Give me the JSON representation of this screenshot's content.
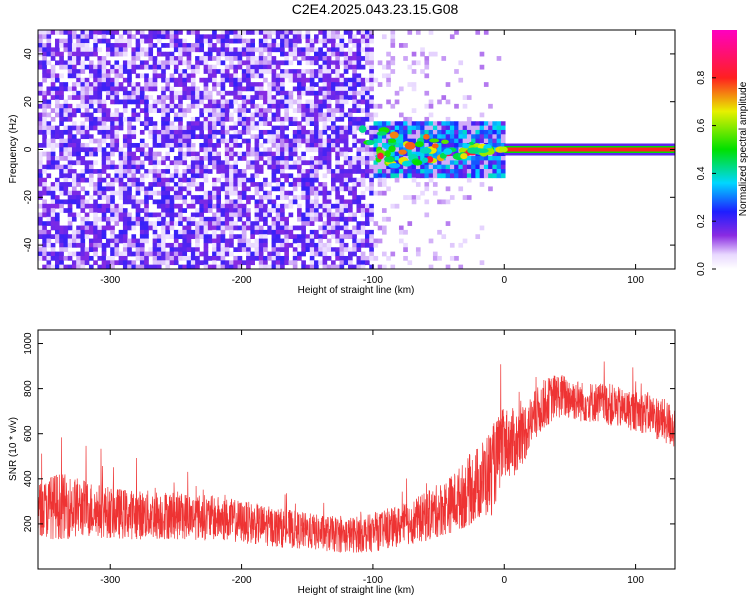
{
  "title": "C2E4.2025.043.23.15.G08",
  "chart_data": [
    {
      "type": "heatmap",
      "xlabel": "Height of straight line (km)",
      "ylabel": "Frequency (Hz)",
      "xlim": [
        -355,
        130
      ],
      "ylim": [
        -50,
        50
      ],
      "xticks": [
        -300,
        -200,
        -100,
        0,
        100
      ],
      "yticks": [
        -40,
        -20,
        0,
        20,
        40
      ],
      "colorbar": {
        "label": "Normalized spectral amplitude",
        "range": [
          0.0,
          1.0
        ],
        "ticks": [
          0.0,
          0.2,
          0.4,
          0.6,
          0.8
        ],
        "tick_labels": [
          "0.0",
          "0.2",
          "0.4",
          "0.6",
          "0.8"
        ],
        "colormap": "rainbow (white-purple-blue-cyan-green-yellow-red-magenta)"
      },
      "features": {
        "noise_region_x": [
          -355,
          -100
        ],
        "noise_level_normalized": 0.2,
        "signal_line_frequency_hz": 0,
        "signal_line_x_from": -110,
        "signal_strength_at_x_gt_0": 1.0
      }
    },
    {
      "type": "line",
      "xlabel": "Height of straight line (km)",
      "ylabel": "SNR (10 * v/v)",
      "xlim": [
        -355,
        130
      ],
      "ylim": [
        0,
        1060
      ],
      "xticks": [
        -300,
        -200,
        -100,
        0,
        100
      ],
      "yticks": [
        200,
        400,
        600,
        800,
        1000
      ],
      "series": [
        {
          "color": "#ee3333",
          "x": [
            -355,
            -340,
            -320,
            -300,
            -280,
            -260,
            -240,
            -220,
            -200,
            -180,
            -160,
            -140,
            -120,
            -100,
            -80,
            -60,
            -40,
            -30,
            -20,
            -10,
            0,
            10,
            20,
            30,
            40,
            50,
            60,
            70,
            80,
            90,
            100,
            110,
            120,
            130
          ],
          "y": [
            260,
            280,
            270,
            250,
            240,
            240,
            235,
            225,
            210,
            190,
            175,
            160,
            150,
            160,
            190,
            230,
            290,
            330,
            380,
            430,
            560,
            560,
            650,
            730,
            770,
            760,
            740,
            740,
            730,
            710,
            700,
            690,
            660,
            630
          ],
          "spread": [
            120,
            150,
            130,
            115,
            110,
            110,
            105,
            100,
            95,
            90,
            85,
            80,
            80,
            85,
            90,
            110,
            130,
            150,
            170,
            200,
            160,
            150,
            120,
            110,
            100,
            100,
            90,
            90,
            95,
            90,
            90,
            95,
            100,
            100
          ]
        }
      ]
    }
  ]
}
